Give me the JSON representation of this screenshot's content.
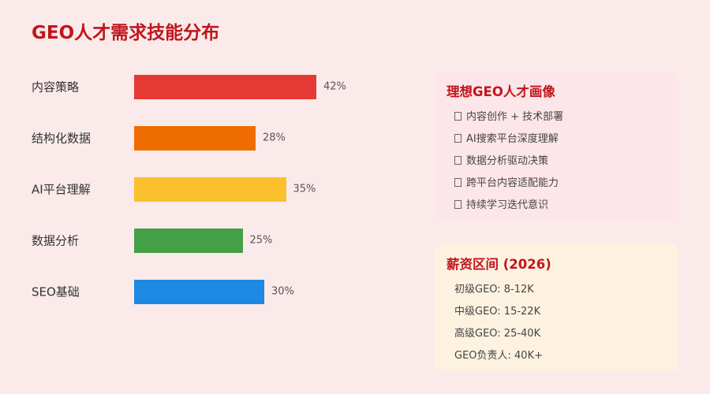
{
  "title": "GEO人才需求技能分布",
  "chart_data": {
    "type": "bar",
    "orientation": "horizontal",
    "categories": [
      "内容策略",
      "结构化数据",
      "AI平台理解",
      "数据分析",
      "SEO基础"
    ],
    "values": [
      42,
      28,
      35,
      25,
      30
    ],
    "value_labels": [
      "42%",
      "28%",
      "35%",
      "25%",
      "30%"
    ],
    "colors": [
      "#e53935",
      "#ef6c00",
      "#fbc02d",
      "#43a047",
      "#1e88e5"
    ],
    "unit": "%",
    "title": "",
    "xlabel": "",
    "ylabel": "",
    "xlim": [
      0,
      72
    ],
    "grid": false,
    "legend": "none"
  },
  "profile_card": {
    "title": "理想GEO人才画像",
    "bullet_icon": "checkbox-icon",
    "items": [
      "内容创作 + 技术部署",
      "AI搜索平台深度理解",
      "数据分析驱动决策",
      "跨平台内容适配能力",
      "持续学习迭代意识"
    ]
  },
  "salary_card": {
    "title": "薪资区间 (2026)",
    "items": [
      "初级GEO: 8-12K",
      "中级GEO: 15-22K",
      "高级GEO: 25-40K",
      "GEO负责人: 40K+"
    ]
  }
}
